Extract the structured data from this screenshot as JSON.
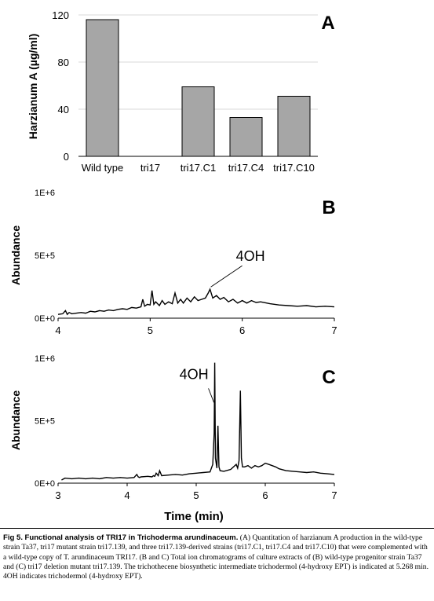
{
  "chart_data": [
    {
      "type": "bar",
      "panel_letter": "A",
      "ylabel": "Harzianum A (µg/ml)",
      "ylim": [
        0,
        120
      ],
      "yticks": [
        "0",
        "40",
        "80",
        "120"
      ],
      "categories": [
        "Wild type",
        "tri17",
        "tri17.C1",
        "tri17.C4",
        "tri17.C10"
      ],
      "values": [
        116,
        0,
        59,
        33,
        51
      ],
      "bar_color": "#a6a6a6",
      "grid": true
    },
    {
      "type": "line",
      "panel_letter": "B",
      "ylabel": "Abundance",
      "xlim": [
        4,
        7
      ],
      "ylim": [
        0,
        1000000
      ],
      "xticks": [
        "4",
        "5",
        "6",
        "7"
      ],
      "yticks": [
        "0E+0",
        "5E+5",
        "1E+6"
      ],
      "annotation": {
        "text": "4OH",
        "x": 5.65,
        "y": 230000
      },
      "x": [
        4.0,
        4.05,
        4.08,
        4.1,
        4.12,
        4.15,
        4.2,
        4.25,
        4.3,
        4.35,
        4.4,
        4.45,
        4.5,
        4.55,
        4.6,
        4.65,
        4.7,
        4.75,
        4.8,
        4.85,
        4.9,
        4.92,
        4.94,
        4.97,
        5.0,
        5.02,
        5.04,
        5.06,
        5.1,
        5.13,
        5.16,
        5.2,
        5.24,
        5.27,
        5.3,
        5.33,
        5.36,
        5.4,
        5.44,
        5.48,
        5.52,
        5.56,
        5.6,
        5.63,
        5.65,
        5.68,
        5.72,
        5.76,
        5.8,
        5.85,
        5.9,
        5.95,
        6.0,
        6.05,
        6.1,
        6.15,
        6.2,
        6.3,
        6.4,
        6.5,
        6.6,
        6.7,
        6.8,
        6.9,
        7.0
      ],
      "y": [
        30000,
        35000,
        60000,
        30000,
        45000,
        35000,
        40000,
        45000,
        40000,
        55000,
        50000,
        60000,
        55000,
        65000,
        60000,
        70000,
        75000,
        70000,
        85000,
        80000,
        90000,
        150000,
        95000,
        110000,
        105000,
        220000,
        110000,
        130000,
        100000,
        140000,
        110000,
        130000,
        115000,
        200000,
        120000,
        150000,
        120000,
        160000,
        130000,
        170000,
        140000,
        150000,
        160000,
        200000,
        230000,
        160000,
        180000,
        150000,
        165000,
        130000,
        150000,
        120000,
        140000,
        120000,
        140000,
        125000,
        130000,
        115000,
        105000,
        100000,
        95000,
        100000,
        90000,
        95000,
        90000
      ]
    },
    {
      "type": "line",
      "panel_letter": "C",
      "ylabel": "Abundance",
      "xlabel": "Time (min)",
      "xlim": [
        3,
        7
      ],
      "ylim": [
        0,
        1000000
      ],
      "xticks": [
        "3",
        "4",
        "5",
        "6",
        "7"
      ],
      "yticks": [
        "0E+0",
        "5E+5",
        "1E+6"
      ],
      "annotation": {
        "text": "4OH",
        "x": 5.268,
        "y": 960000
      },
      "x": [
        3.05,
        3.1,
        3.2,
        3.3,
        3.4,
        3.5,
        3.6,
        3.7,
        3.8,
        3.9,
        4.0,
        4.1,
        4.14,
        4.16,
        4.18,
        4.2,
        4.3,
        4.36,
        4.38,
        4.4,
        4.42,
        4.45,
        4.47,
        4.5,
        4.6,
        4.7,
        4.8,
        4.9,
        5.0,
        5.1,
        5.2,
        5.24,
        5.26,
        5.268,
        5.278,
        5.3,
        5.315,
        5.33,
        5.345,
        5.4,
        5.5,
        5.58,
        5.6,
        5.62,
        5.64,
        5.655,
        5.67,
        5.7,
        5.75,
        5.8,
        5.85,
        5.9,
        5.95,
        6.0,
        6.05,
        6.1,
        6.15,
        6.2,
        6.3,
        6.4,
        6.5,
        6.6,
        6.7,
        6.8,
        6.9,
        7.0
      ],
      "y": [
        25000,
        40000,
        35000,
        40000,
        35000,
        40000,
        35000,
        45000,
        40000,
        45000,
        40000,
        45000,
        70000,
        50000,
        45000,
        50000,
        55000,
        50000,
        60000,
        55000,
        80000,
        60000,
        100000,
        60000,
        65000,
        70000,
        65000,
        75000,
        80000,
        85000,
        90000,
        150000,
        400000,
        965000,
        200000,
        120000,
        460000,
        130000,
        100000,
        95000,
        110000,
        150000,
        120000,
        180000,
        740000,
        200000,
        130000,
        130000,
        140000,
        120000,
        140000,
        130000,
        140000,
        160000,
        150000,
        140000,
        130000,
        115000,
        100000,
        95000,
        90000,
        85000,
        90000,
        80000,
        75000,
        70000
      ]
    }
  ],
  "caption": {
    "label": "Fig 5.",
    "title": "Functional analysis of TRI17 in Trichoderma arundinaceum.",
    "text": "(A) Quantitation of harzianum A production in the wild-type strain Ta37, tri17 mutant strain tri17.139, and three tri17.139-derived strains (tri17.C1, tri17.C4 and tri17.C10) that were complemented with a wild-type copy of T. arundinaceum TRI17. (B and C) Total ion chromatograms of culture extracts of (B) wild-type progenitor strain Ta37 and (C) tri17 deletion mutant tri17.139. The trichothecene biosynthetic intermediate trichodermol (4-hydroxy EPT) is indicated at 5.268 min. 4OH indicates trichodermol (4-hydroxy EPT)."
  }
}
